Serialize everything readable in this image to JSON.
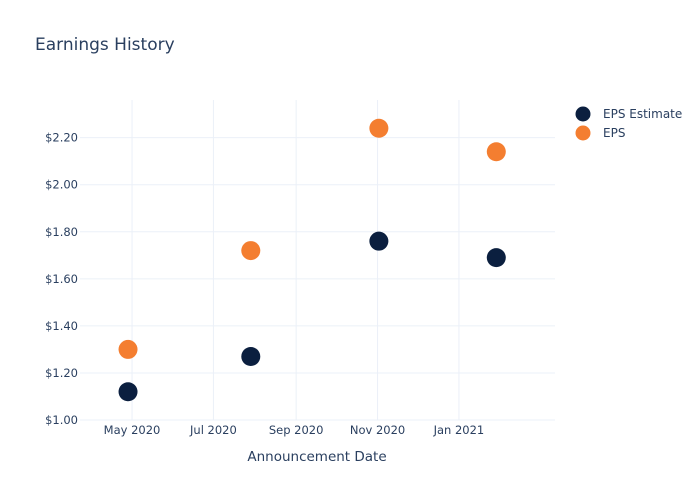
{
  "chart_data": {
    "type": "scatter",
    "title": "Earnings History",
    "xlabel": "Announcement Date",
    "ylabel": "",
    "x_ticks": [
      "2020-05-01",
      "2020-07-01",
      "2020-09-01",
      "2020-11-01",
      "2021-01-01"
    ],
    "x_tick_labels": [
      "May 2020",
      "Jul 2020",
      "Sep 2020",
      "Nov 2020",
      "Jan 2021"
    ],
    "x_range": [
      "2020-03-23",
      "2021-03-14"
    ],
    "y_ticks": [
      1.0,
      1.2,
      1.4,
      1.6,
      1.8,
      2.0,
      2.2
    ],
    "y_tick_labels": [
      "$1.00",
      "$1.20",
      "$1.40",
      "$1.60",
      "$1.80",
      "$2.00",
      "$2.20"
    ],
    "ylim": [
      1.0,
      2.36
    ],
    "grid": true,
    "legend_position": "top-right",
    "series": [
      {
        "name": "EPS Estimate",
        "color": "#0b1f3f",
        "points": [
          {
            "x": "2020-04-28",
            "y": 1.12
          },
          {
            "x": "2020-07-29",
            "y": 1.27
          },
          {
            "x": "2020-11-02",
            "y": 1.76
          },
          {
            "x": "2021-01-29",
            "y": 1.69
          }
        ]
      },
      {
        "name": "EPS",
        "color": "#f47e30",
        "points": [
          {
            "x": "2020-04-28",
            "y": 1.3
          },
          {
            "x": "2020-07-29",
            "y": 1.72
          },
          {
            "x": "2020-11-02",
            "y": 2.24
          },
          {
            "x": "2021-01-29",
            "y": 2.14
          }
        ]
      }
    ]
  }
}
